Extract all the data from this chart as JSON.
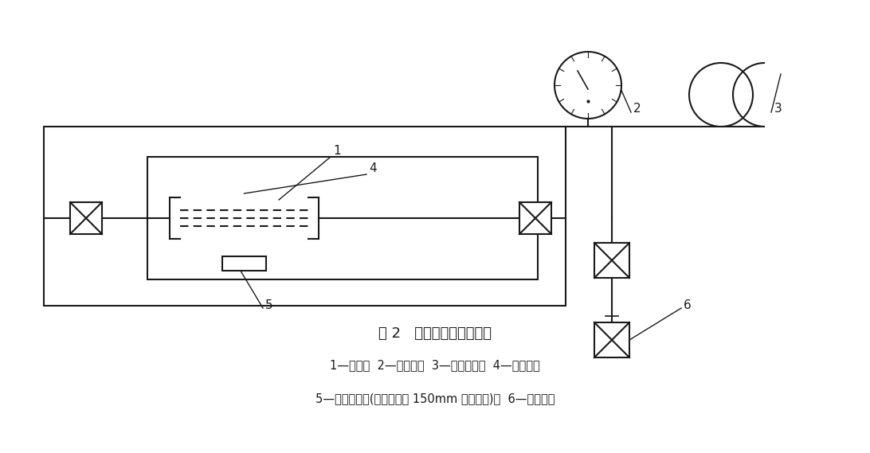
{
  "title": "图 2   热冲击试验典型装置",
  "caption_line1": "1—箱子；  2—指示表；  3—高温油泵；  4—试验管；",
  "caption_line2": "5—环境测量点(距离试验管 150mm 以内测量)；  6—高压源。",
  "bg_color": "#ffffff",
  "line_color": "#1a1a1a",
  "fig_width": 10.92,
  "fig_height": 5.69
}
